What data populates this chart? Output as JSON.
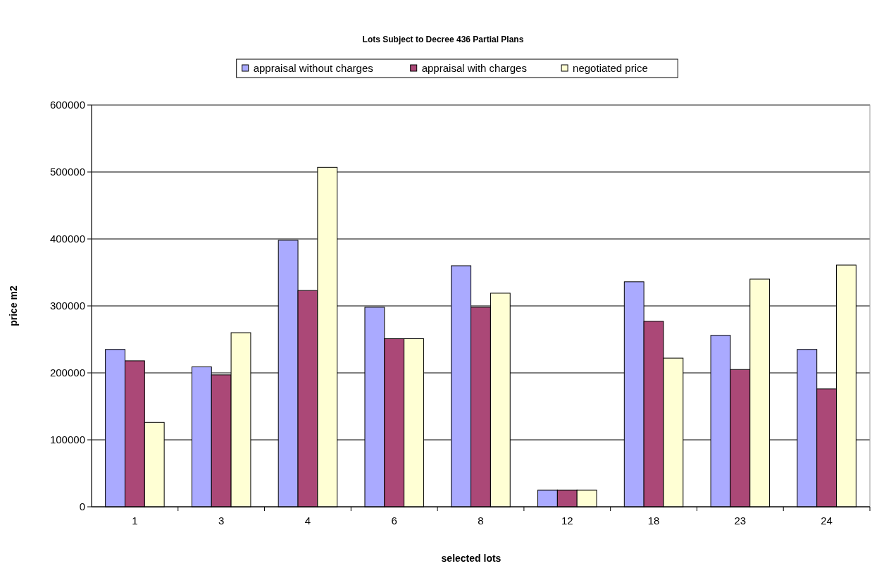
{
  "chart_data": {
    "type": "bar",
    "title": "Lots Subject to Decree 436 Partial Plans",
    "xlabel": "selected lots",
    "ylabel": "price m2",
    "categories": [
      "1",
      "3",
      "4",
      "6",
      "8",
      "12",
      "18",
      "23",
      "24"
    ],
    "series": [
      {
        "name": "appraisal without charges",
        "color": "#aaaaff",
        "values": [
          235000,
          209000,
          398000,
          298000,
          360000,
          25000,
          336000,
          256000,
          235000
        ]
      },
      {
        "name": "appraisal with charges",
        "color": "#ab4877",
        "values": [
          218000,
          197000,
          323000,
          251000,
          298000,
          25000,
          277000,
          205000,
          176000
        ]
      },
      {
        "name": "negotiated price",
        "color": "#ffffd4",
        "values": [
          126000,
          260000,
          507000,
          251000,
          319000,
          25000,
          222000,
          340000,
          361000
        ]
      }
    ],
    "ylim": [
      0,
      600000
    ],
    "yticks": [
      0,
      100000,
      200000,
      300000,
      400000,
      500000,
      600000
    ],
    "grid": "y",
    "legend": "top"
  }
}
